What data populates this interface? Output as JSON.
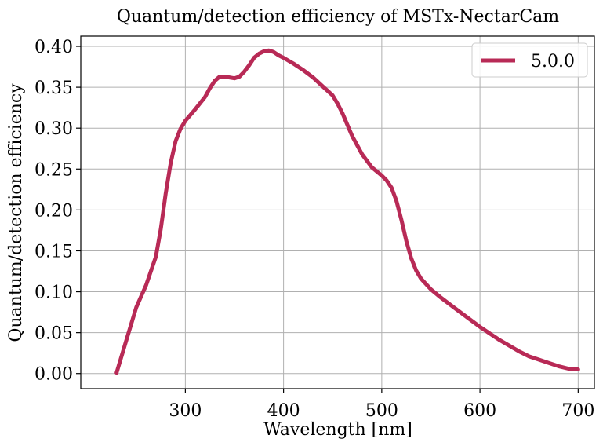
{
  "chart_data": {
    "type": "line",
    "title": "Quantum/detection efficiency of MSTx-NectarCam",
    "xlabel": "Wavelength [nm]",
    "ylabel": "Quantum/detection efficiency",
    "xlim": [
      193.5,
      716.5
    ],
    "ylim": [
      -0.0185,
      0.4125
    ],
    "xticks": [
      300,
      400,
      500,
      600,
      700
    ],
    "yticks": [
      0.0,
      0.05,
      0.1,
      0.15,
      0.2,
      0.25,
      0.3,
      0.35,
      0.4
    ],
    "xtick_labels": [
      "300",
      "400",
      "500",
      "600",
      "700"
    ],
    "ytick_labels": [
      "0.00",
      "0.05",
      "0.10",
      "0.15",
      "0.20",
      "0.25",
      "0.30",
      "0.35",
      "0.40"
    ],
    "grid": true,
    "legend_position": "top-right",
    "series": [
      {
        "name": "5.0.0",
        "color": "#b82a56",
        "x": [
          230,
          240,
          250,
          260,
          270,
          275,
          280,
          285,
          290,
          295,
          300,
          310,
          320,
          325,
          330,
          335,
          340,
          345,
          350,
          355,
          360,
          365,
          370,
          375,
          380,
          385,
          390,
          395,
          400,
          410,
          420,
          430,
          440,
          450,
          455,
          460,
          465,
          470,
          480,
          490,
          500,
          505,
          510,
          515,
          520,
          525,
          530,
          535,
          540,
          550,
          560,
          570,
          580,
          590,
          600,
          610,
          620,
          630,
          640,
          650,
          660,
          670,
          680,
          690,
          700
        ],
        "y": [
          0.001,
          0.041,
          0.081,
          0.108,
          0.143,
          0.177,
          0.22,
          0.257,
          0.284,
          0.299,
          0.309,
          0.323,
          0.338,
          0.349,
          0.358,
          0.363,
          0.363,
          0.362,
          0.361,
          0.363,
          0.369,
          0.377,
          0.386,
          0.391,
          0.394,
          0.395,
          0.393,
          0.389,
          0.386,
          0.379,
          0.371,
          0.362,
          0.351,
          0.34,
          0.33,
          0.318,
          0.304,
          0.29,
          0.268,
          0.252,
          0.242,
          0.236,
          0.227,
          0.211,
          0.188,
          0.162,
          0.141,
          0.126,
          0.116,
          0.103,
          0.093,
          0.084,
          0.075,
          0.066,
          0.057,
          0.049,
          0.041,
          0.034,
          0.027,
          0.021,
          0.017,
          0.013,
          0.009,
          0.006,
          0.005
        ]
      }
    ]
  }
}
